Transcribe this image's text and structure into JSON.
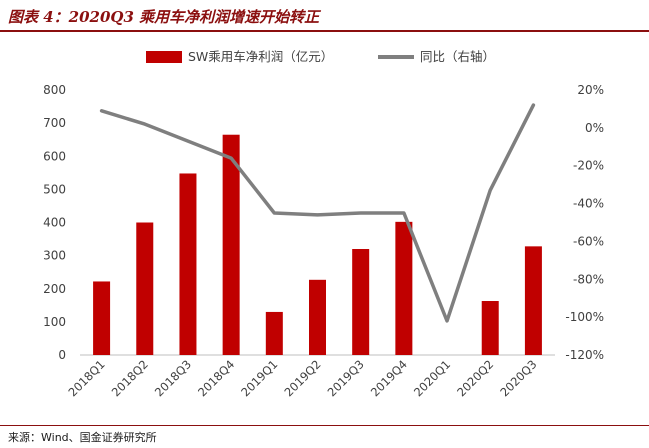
{
  "header": {
    "title": "图表 4：2020Q3 乘用车净利润增速开始转正"
  },
  "footer": {
    "source": "来源：Wind、国金证券研究所"
  },
  "colors": {
    "bar": "#c00000",
    "line": "#7f7f7f",
    "title": "#8b0f0f"
  },
  "chart_data": {
    "type": "bar",
    "categories": [
      "2018Q1",
      "2018Q2",
      "2018Q3",
      "2018Q4",
      "2019Q1",
      "2019Q2",
      "2019Q3",
      "2019Q4",
      "2020Q1",
      "2020Q2",
      "2020Q3"
    ],
    "series": [
      {
        "name": "SW乘用车净利润（亿元）",
        "type": "bar",
        "axis": "left",
        "values": [
          222,
          400,
          548,
          665,
          130,
          227,
          320,
          402,
          0,
          163,
          328
        ]
      },
      {
        "name": "同比（右轴）",
        "type": "line",
        "axis": "right",
        "values": [
          9,
          2,
          -7,
          -16,
          -45,
          -46,
          -45,
          -45,
          -102,
          -33,
          12
        ]
      }
    ],
    "ylim_left": [
      0,
      800
    ],
    "yticks_left": [
      "0",
      "100",
      "200",
      "300",
      "400",
      "500",
      "600",
      "700",
      "800"
    ],
    "ylim_right": [
      -120,
      20
    ],
    "yticks_right": [
      "-120%",
      "-100%",
      "-80%",
      "-60%",
      "-40%",
      "-20%",
      "0%",
      "20%"
    ],
    "legend_position": "top"
  }
}
